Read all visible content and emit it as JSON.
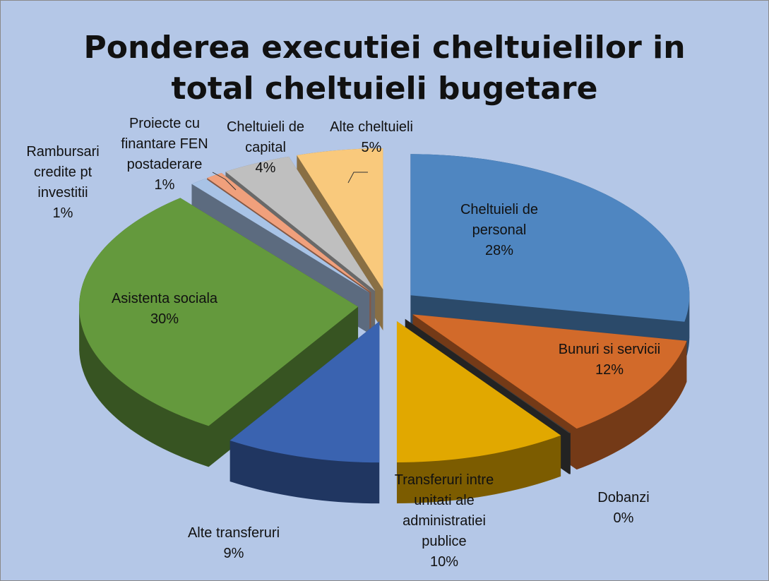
{
  "chart_data": {
    "type": "pie",
    "title": "Ponderea executiei cheltuielilor in total cheltuieli bugetare",
    "categories": [
      "Cheltuieli de personal",
      "Bunuri si servicii",
      "Dobanzi",
      "Transferuri intre unitati ale administratiei publice",
      "Alte transferuri",
      "Asistenta sociala",
      "Rambursari credite pt investitii",
      "Proiecte cu finantare FEN postaderare",
      "Cheltuieli de capital",
      "Alte cheltuieli"
    ],
    "values": [
      28,
      12,
      0,
      10,
      9,
      30,
      1,
      1,
      4,
      5
    ],
    "value_labels": [
      "28%",
      "12%",
      "0%",
      "10%",
      "9%",
      "30%",
      "1%",
      "1%",
      "4%",
      "5%"
    ],
    "colors": [
      "#4f86c1",
      "#d26a2a",
      "#404040",
      "#e1a800",
      "#3a63b0",
      "#64993d",
      "#a8c3e6",
      "#f0a07c",
      "#bfbfbf",
      "#f9c97c"
    ]
  }
}
